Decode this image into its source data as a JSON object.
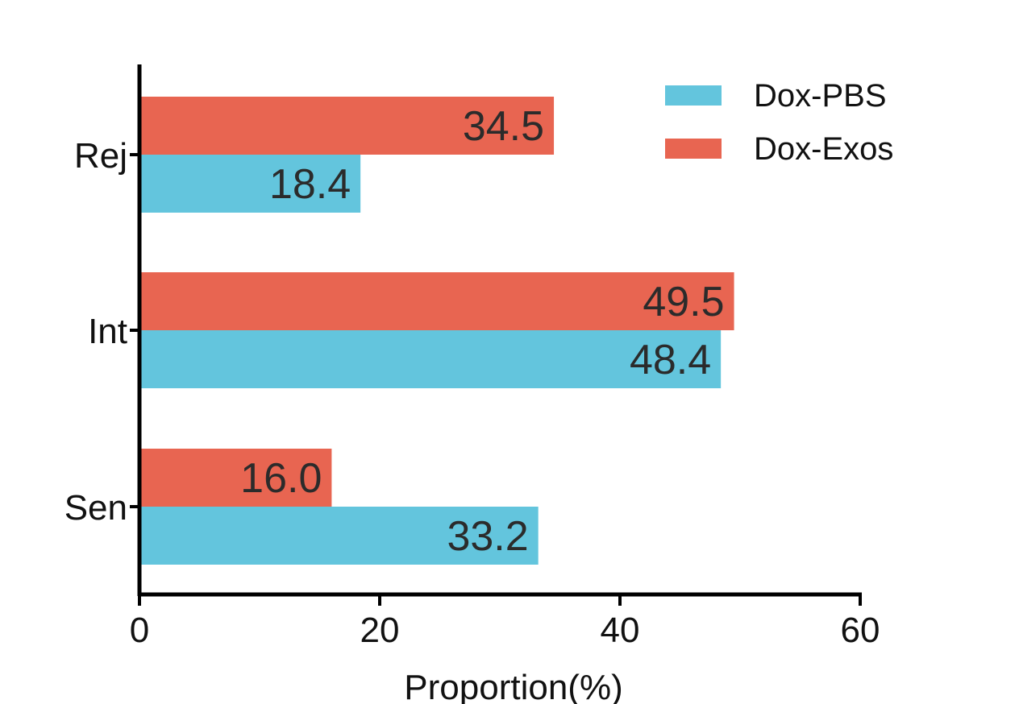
{
  "chart_data": {
    "type": "bar",
    "orientation": "horizontal",
    "categories": [
      "Rej",
      "Int",
      "Sen"
    ],
    "series": [
      {
        "name": "Dox-Exos",
        "values": [
          34.5,
          49.5,
          16.0
        ],
        "labels": [
          "34.5",
          "49.5",
          "16.0"
        ],
        "color": "#E86551"
      },
      {
        "name": "Dox-PBS",
        "values": [
          18.4,
          48.4,
          33.2
        ],
        "labels": [
          "18.4",
          "48.4",
          "33.2"
        ],
        "color": "#63C5DD"
      }
    ],
    "xlabel": "Proportion(%)",
    "ylabel": "",
    "xlim": [
      0,
      60
    ],
    "xticks": [
      "0",
      "20",
      "40",
      "60"
    ],
    "grid": false,
    "legend": {
      "position": "top-right",
      "items": [
        {
          "name": "Dox-PBS",
          "color": "#63C5DD"
        },
        {
          "name": "Dox-Exos",
          "color": "#E86551"
        }
      ]
    }
  }
}
